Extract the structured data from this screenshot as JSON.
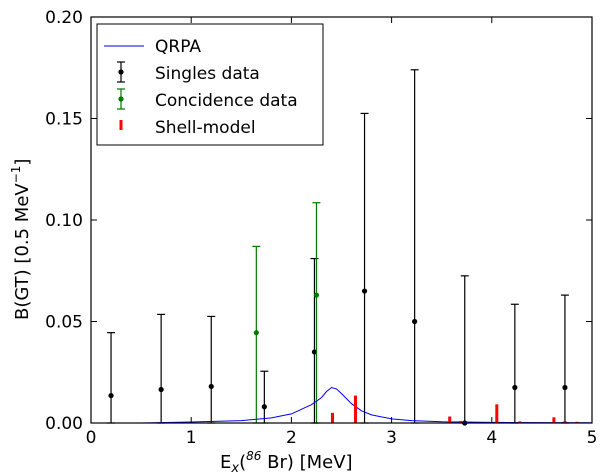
{
  "chart_data": {
    "type": "scatter",
    "title": "",
    "xlabel": {
      "prefix": "E",
      "sub": "x",
      "open": "(",
      "sup": "86",
      "element": " Br) [MeV]"
    },
    "ylabel": {
      "main": "B(GT) [0.5 MeV",
      "sup": "−1",
      "close": "]"
    },
    "xlim": [
      0,
      5
    ],
    "ylim": [
      0,
      0.2
    ],
    "xticks": [
      0,
      1,
      2,
      3,
      4,
      5
    ],
    "xtick_labels": [
      "0",
      "1",
      "2",
      "3",
      "4",
      "5"
    ],
    "yticks": [
      0,
      0.05,
      0.1,
      0.15,
      0.2
    ],
    "ytick_labels": [
      "0.00",
      "0.05",
      "0.10",
      "0.15",
      "0.20"
    ],
    "grid": false,
    "legend_position": "top-left",
    "legend": [
      "QRPA",
      "Singles data",
      "Concidence data",
      "Shell-model"
    ],
    "colors": {
      "qrpa": "#0000ff",
      "singles": "#000000",
      "coincidence": "#007700",
      "shell": "#ff0000"
    },
    "series": [
      {
        "name": "Singles data",
        "kind": "errorbar",
        "points": [
          {
            "x": 0.2,
            "y": 0.0135,
            "low": 0.0,
            "high": 0.0445
          },
          {
            "x": 0.7,
            "y": 0.0165,
            "low": 0.0,
            "high": 0.0535
          },
          {
            "x": 1.2,
            "y": 0.018,
            "low": 0.0,
            "high": 0.0525
          },
          {
            "x": 1.73,
            "y": 0.008,
            "low": 0.0,
            "high": 0.0255
          },
          {
            "x": 2.23,
            "y": 0.035,
            "low": 0.0,
            "high": 0.081
          },
          {
            "x": 2.73,
            "y": 0.065,
            "low": 0.0,
            "high": 0.1525
          },
          {
            "x": 3.23,
            "y": 0.05,
            "low": 0.0,
            "high": 0.174
          },
          {
            "x": 3.73,
            "y": 0.0,
            "low": 0.0,
            "high": 0.0725
          },
          {
            "x": 4.23,
            "y": 0.0175,
            "low": 0.0,
            "high": 0.0585
          },
          {
            "x": 4.73,
            "y": 0.0175,
            "low": 0.0,
            "high": 0.063
          }
        ]
      },
      {
        "name": "Concidence data",
        "kind": "errorbar",
        "points": [
          {
            "x": 1.65,
            "y": 0.0445,
            "low": 0.0,
            "high": 0.087
          },
          {
            "x": 2.25,
            "y": 0.063,
            "low": 0.0,
            "high": 0.1085
          }
        ]
      },
      {
        "name": "QRPA",
        "kind": "line",
        "x": [
          0.0,
          0.5,
          1.0,
          1.5,
          1.8,
          2.0,
          2.2,
          2.3,
          2.35,
          2.4,
          2.45,
          2.5,
          2.6,
          2.7,
          2.8,
          3.0,
          3.2,
          3.5,
          4.0,
          4.5,
          5.0
        ],
        "y": [
          0.0,
          0.0,
          0.0005,
          0.0012,
          0.0025,
          0.0045,
          0.009,
          0.0125,
          0.0155,
          0.0175,
          0.0168,
          0.0145,
          0.0095,
          0.006,
          0.004,
          0.002,
          0.0012,
          0.0006,
          0.0003,
          0.0002,
          0.0001
        ]
      },
      {
        "name": "Shell-model",
        "kind": "stem",
        "points": [
          {
            "x": 2.41,
            "y": 0.005
          },
          {
            "x": 2.64,
            "y": 0.0135
          },
          {
            "x": 3.58,
            "y": 0.0032
          },
          {
            "x": 3.69,
            "y": 0.001
          },
          {
            "x": 4.05,
            "y": 0.0092
          },
          {
            "x": 4.28,
            "y": 0.0008
          },
          {
            "x": 4.62,
            "y": 0.0028
          },
          {
            "x": 4.73,
            "y": 0.001
          },
          {
            "x": 4.85,
            "y": 0.0006
          }
        ]
      }
    ]
  }
}
